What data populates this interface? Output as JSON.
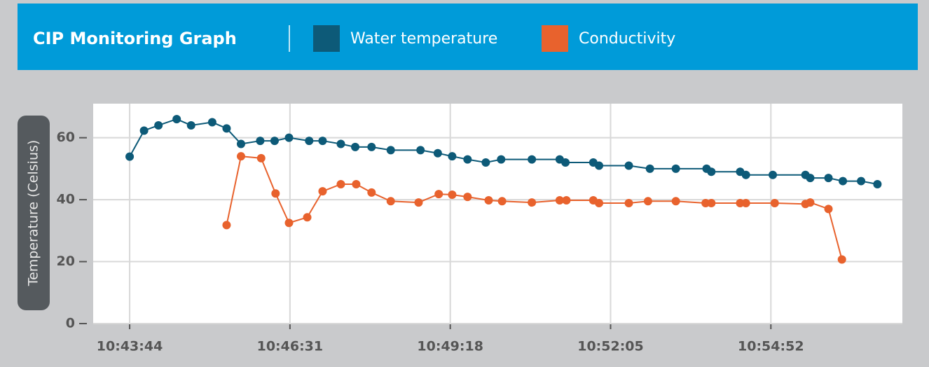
{
  "chart_data": {
    "type": "line",
    "title": "CIP Monitoring Graph",
    "y_label": "Temperature (Celsius)",
    "xlim": [
      "10:43:06",
      "10:57:09"
    ],
    "xticks": [
      "10:43:44",
      "10:46:31",
      "10:49:18",
      "10:52:05",
      "10:54:52"
    ],
    "ylim": [
      0,
      71
    ],
    "yticks": [
      0,
      20,
      40,
      60
    ],
    "grid": true,
    "series": [
      {
        "name": "Water temperature",
        "color": "#0d5a78",
        "x": [
          "10:43:44",
          "10:43:59",
          "10:44:14",
          "10:44:33",
          "10:44:48",
          "10:45:10",
          "10:45:25",
          "10:45:40",
          "10:46:00",
          "10:46:15",
          "10:46:30",
          "10:46:51",
          "10:47:05",
          "10:47:24",
          "10:47:39",
          "10:47:56",
          "10:48:16",
          "10:48:47",
          "10:49:05",
          "10:49:20",
          "10:49:36",
          "10:49:55",
          "10:50:11",
          "10:50:43",
          "10:51:12",
          "10:51:18",
          "10:51:47",
          "10:51:53",
          "10:52:24",
          "10:52:46",
          "10:53:13",
          "10:53:45",
          "10:53:50",
          "10:54:20",
          "10:54:26",
          "10:54:54",
          "10:55:28",
          "10:55:33",
          "10:55:52",
          "10:56:07",
          "10:56:26",
          "10:56:43"
        ],
        "values": [
          53.9,
          62.3,
          64,
          66,
          64,
          65,
          63,
          58,
          59,
          59,
          60,
          59,
          59,
          58,
          57,
          57,
          56,
          56,
          55,
          54,
          53,
          52,
          53,
          53,
          53,
          52,
          52,
          51,
          51,
          50,
          50,
          50,
          49,
          49,
          48,
          48,
          48,
          47,
          47,
          46,
          46,
          45
        ]
      },
      {
        "name": "Conductivity",
        "color": "#e8622d",
        "x": [
          "10:45:25",
          "10:45:40",
          "10:46:01",
          "10:46:16",
          "10:46:30",
          "10:46:49",
          "10:47:05",
          "10:47:24",
          "10:47:40",
          "10:47:56",
          "10:48:16",
          "10:48:45",
          "10:49:06",
          "10:49:20",
          "10:49:36",
          "10:49:58",
          "10:50:12",
          "10:50:43",
          "10:51:12",
          "10:51:19",
          "10:51:47",
          "10:51:53",
          "10:52:24",
          "10:52:44",
          "10:53:13",
          "10:53:44",
          "10:53:50",
          "10:54:20",
          "10:54:26",
          "10:54:56",
          "10:55:28",
          "10:55:33",
          "10:55:52",
          "10:56:06"
        ],
        "values": [
          31.8,
          54,
          53.4,
          42,
          32.5,
          34.3,
          42.7,
          45,
          45,
          42.3,
          39.5,
          39.1,
          41.8,
          41.6,
          40.9,
          39.8,
          39.5,
          39.1,
          39.8,
          39.8,
          39.8,
          38.9,
          38.9,
          39.5,
          39.5,
          38.9,
          38.9,
          38.9,
          38.9,
          38.9,
          38.6,
          39.1,
          37,
          20.7
        ]
      }
    ]
  }
}
